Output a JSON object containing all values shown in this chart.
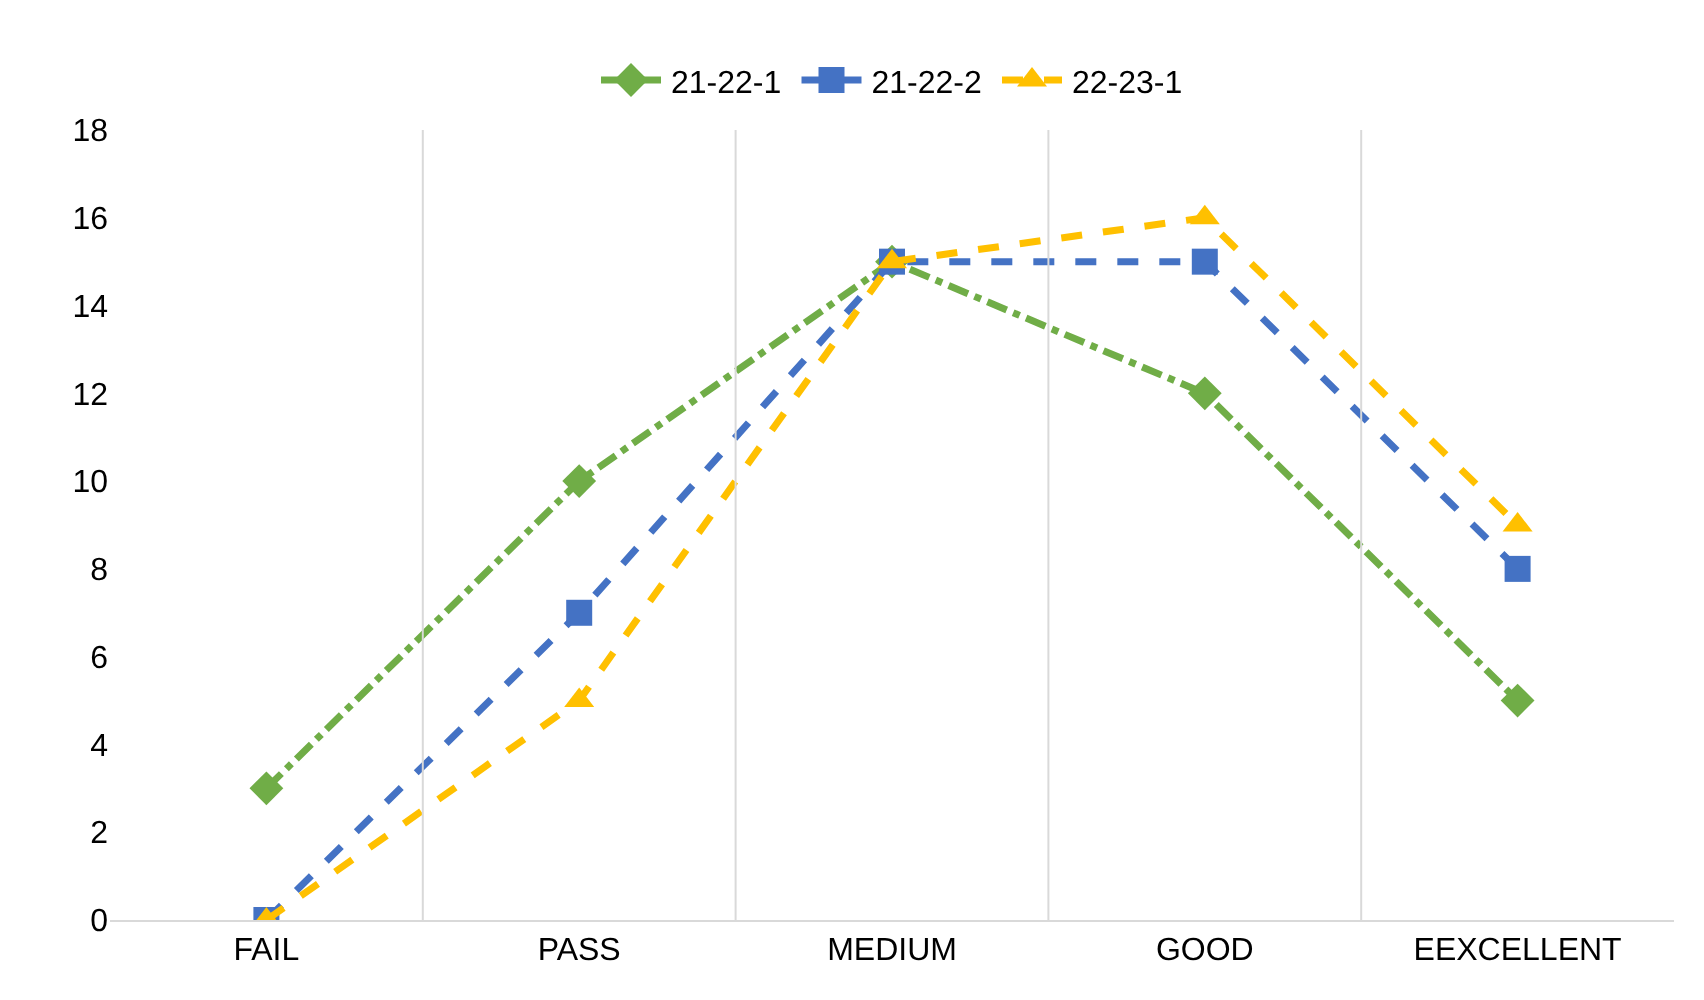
{
  "chart_data": {
    "type": "line",
    "categories": [
      "FAIL",
      "PASS",
      "MEDIUM",
      "GOOD",
      "EEXCELLENT"
    ],
    "series": [
      {
        "name": "21-22-1",
        "color": "#70ad47",
        "values": [
          3,
          10,
          15,
          12,
          5
        ],
        "marker": "diamond",
        "line_style": "dashdot"
      },
      {
        "name": "21-22-2",
        "color": "#4472c4",
        "values": [
          0,
          7,
          15,
          15,
          8
        ],
        "marker": "square",
        "line_style": "dashed"
      },
      {
        "name": "22-23-1",
        "color": "#ffc000",
        "values": [
          0,
          5,
          15,
          16,
          9
        ],
        "marker": "triangle",
        "line_style": "dashed"
      }
    ],
    "ylim": [
      0,
      18
    ],
    "yticks": [
      0,
      2,
      4,
      6,
      8,
      10,
      12,
      14,
      16,
      18
    ],
    "grid": "x",
    "legend": "top"
  }
}
